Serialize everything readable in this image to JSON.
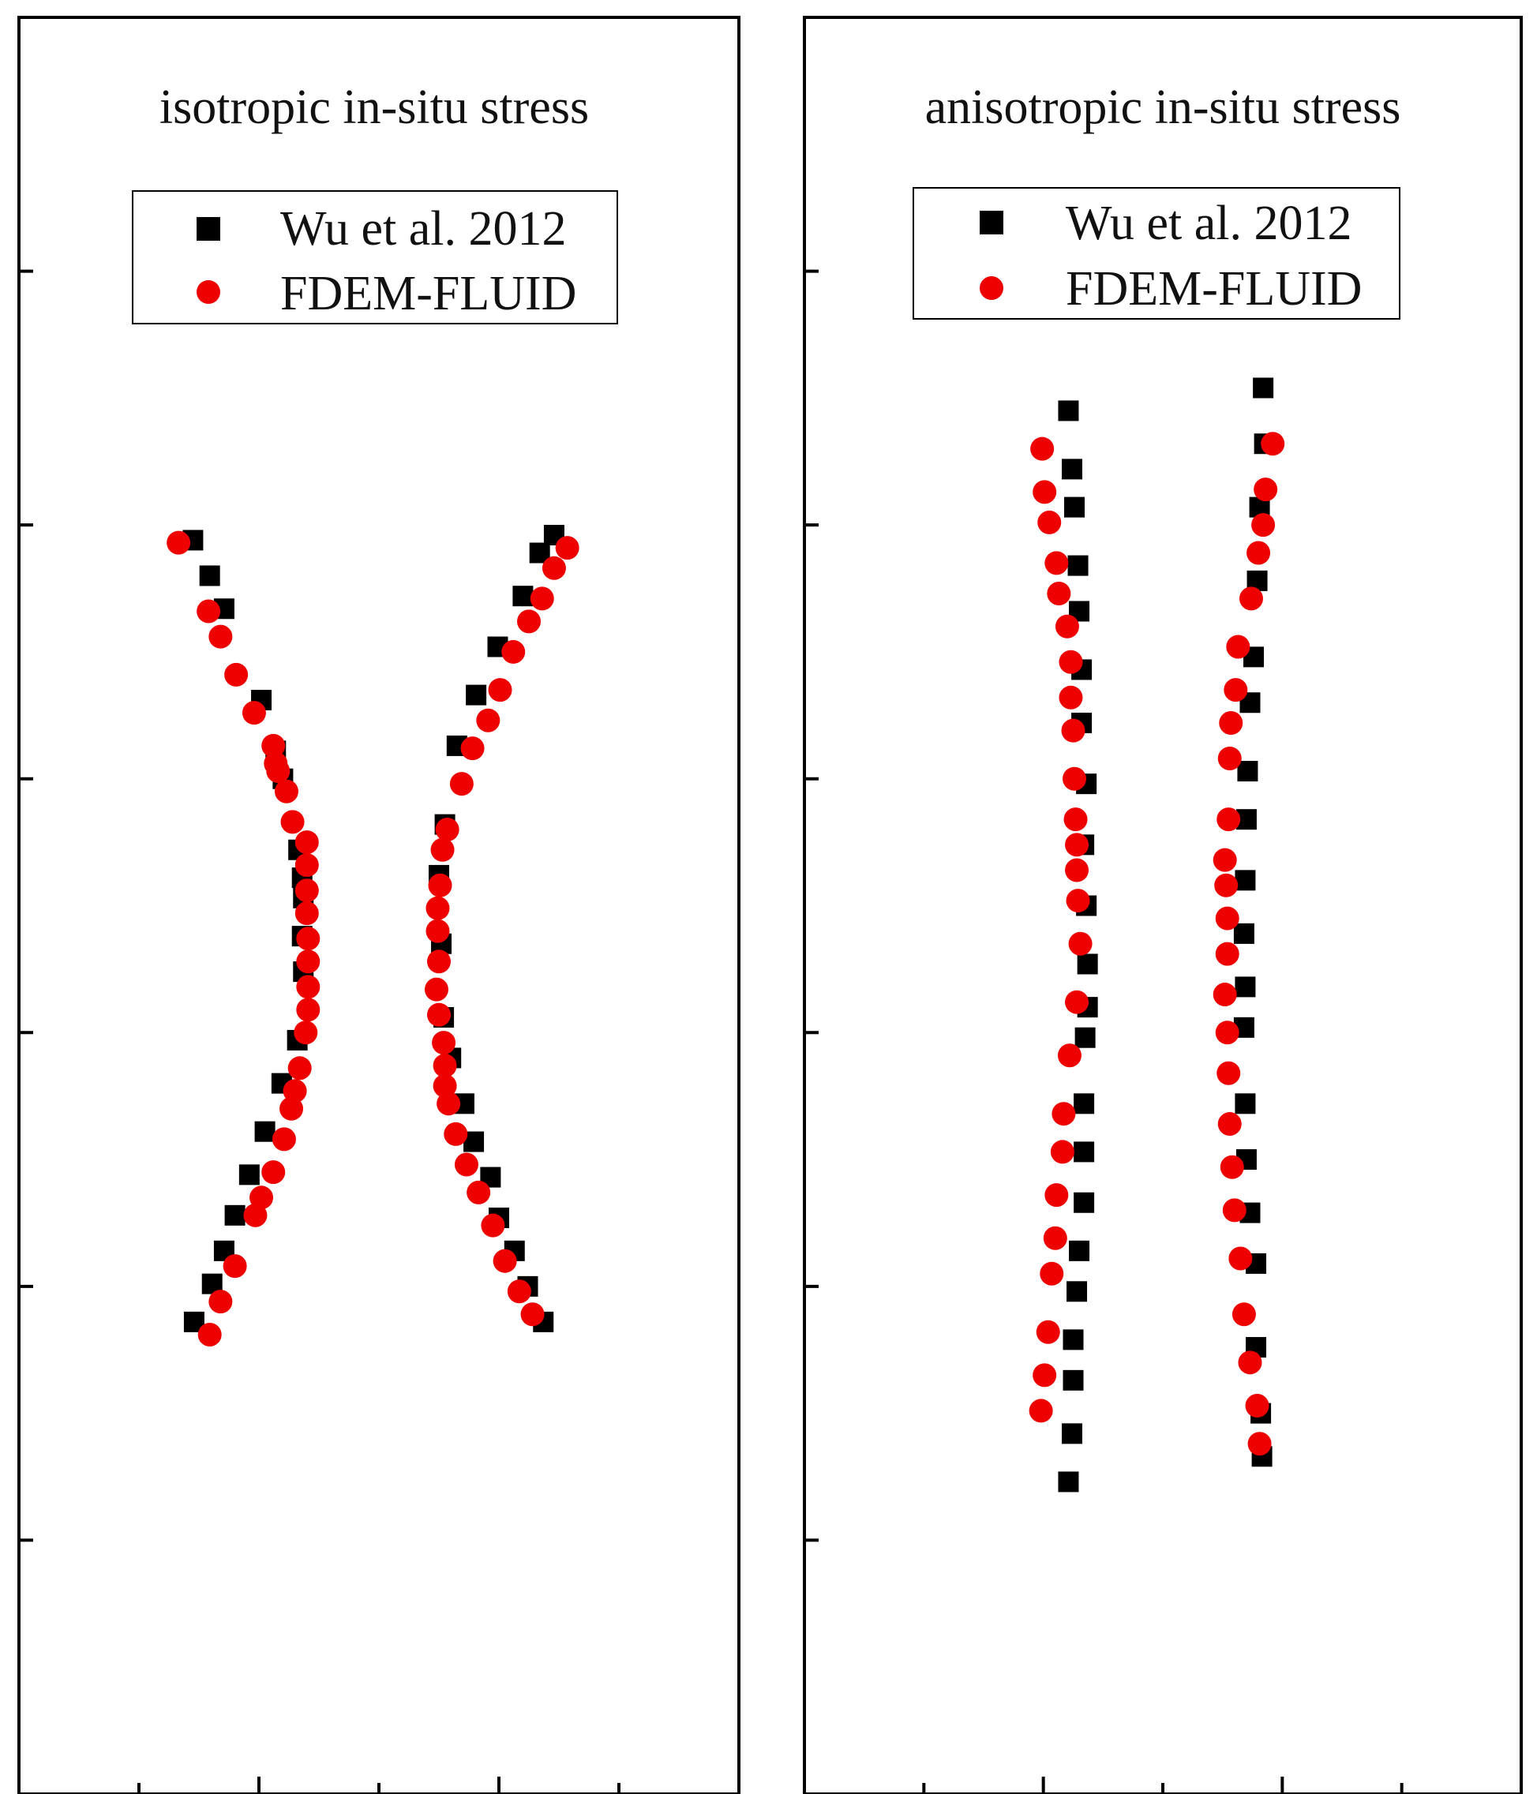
{
  "colors": {
    "series_wu": "#000000",
    "series_fdem": "#ee0000",
    "axis": "#000000"
  },
  "chart_data": [
    {
      "type": "scatter",
      "title": "isotropic in-situ stress",
      "xlabel": "",
      "ylabel": "",
      "xlim": [
        0,
        600
      ],
      "ylim": [
        0,
        700
      ],
      "x_ticks": [
        0,
        100,
        200,
        300,
        400,
        500,
        600
      ],
      "y_ticks": [
        0,
        100,
        200,
        300,
        400,
        500,
        600,
        700
      ],
      "grid": false,
      "legend_position": "top-center",
      "series": [
        {
          "name": "Wu et al. 2012",
          "marker": "square",
          "color": "#000000",
          "points": [
            [
              145,
              494
            ],
            [
              159,
              480
            ],
            [
              171,
              467
            ],
            [
              202,
              431
            ],
            [
              214,
              411
            ],
            [
              220,
              400
            ],
            [
              233,
              372
            ],
            [
              236,
              361
            ],
            [
              237,
              353
            ],
            [
              236,
              338
            ],
            [
              237,
              324
            ],
            [
              232,
              297
            ],
            [
              219,
              280
            ],
            [
              205,
              261
            ],
            [
              192,
              244
            ],
            [
              180,
              228
            ],
            [
              171,
              214
            ],
            [
              161,
              201
            ],
            [
              146,
              186
            ],
            [
              446,
              496
            ],
            [
              434,
              489
            ],
            [
              420,
              472
            ],
            [
              399,
              452
            ],
            [
              381,
              433
            ],
            [
              365,
              413
            ],
            [
              355,
              382
            ],
            [
              350,
              362
            ],
            [
              352,
              335
            ],
            [
              354,
              306
            ],
            [
              360,
              290
            ],
            [
              371,
              272
            ],
            [
              379,
              257
            ],
            [
              393,
              243
            ],
            [
              400,
              227
            ],
            [
              413,
              214
            ],
            [
              424,
              200
            ],
            [
              437,
              186
            ]
          ]
        },
        {
          "name": "FDEM-FLUID",
          "marker": "circle",
          "color": "#ee0000",
          "points": [
            [
              133,
              493
            ],
            [
              158,
              466
            ],
            [
              168,
              456
            ],
            [
              181,
              441
            ],
            [
              196,
              426
            ],
            [
              212,
              413
            ],
            [
              214,
              406
            ],
            [
              216,
              403
            ],
            [
              223,
              395
            ],
            [
              228,
              383
            ],
            [
              240,
              375
            ],
            [
              240,
              366
            ],
            [
              240,
              356
            ],
            [
              240,
              347
            ],
            [
              241,
              337
            ],
            [
              241,
              328
            ],
            [
              241,
              318
            ],
            [
              241,
              309
            ],
            [
              239,
              300
            ],
            [
              234,
              286
            ],
            [
              230,
              277
            ],
            [
              227,
              270
            ],
            [
              221,
              258
            ],
            [
              212,
              245
            ],
            [
              202,
              235
            ],
            [
              197,
              228
            ],
            [
              180,
              208
            ],
            [
              168,
              194
            ],
            [
              159,
              181
            ],
            [
              457,
              491
            ],
            [
              446,
              483
            ],
            [
              436,
              471
            ],
            [
              425,
              462
            ],
            [
              412,
              450
            ],
            [
              401,
              435
            ],
            [
              391,
              423
            ],
            [
              378,
              412
            ],
            [
              369,
              398
            ],
            [
              357,
              380
            ],
            [
              353,
              372
            ],
            [
              351,
              358
            ],
            [
              349,
              349
            ],
            [
              349,
              340
            ],
            [
              350,
              328
            ],
            [
              348,
              317
            ],
            [
              350,
              307
            ],
            [
              354,
              296
            ],
            [
              355,
              287
            ],
            [
              355,
              279
            ],
            [
              358,
              272
            ],
            [
              364,
              260
            ],
            [
              373,
              248
            ],
            [
              383,
              237
            ],
            [
              395,
              224
            ],
            [
              405,
              210
            ],
            [
              417,
              198
            ],
            [
              428,
              189
            ]
          ]
        }
      ]
    },
    {
      "type": "scatter",
      "title": "anisotropic in-situ stress",
      "xlabel": "",
      "ylabel": "",
      "xlim": [
        0,
        600
      ],
      "ylim": [
        0,
        700
      ],
      "x_ticks": [
        0,
        100,
        200,
        300,
        400,
        500,
        600
      ],
      "y_ticks": [
        0,
        100,
        200,
        300,
        400,
        500,
        600,
        700
      ],
      "grid": false,
      "legend_position": "top-center",
      "series": [
        {
          "name": "Wu et al. 2012",
          "marker": "square",
          "color": "#000000",
          "points": [
            [
              221,
              545
            ],
            [
              224,
              522
            ],
            [
              226,
              507
            ],
            [
              229,
              484
            ],
            [
              230,
              466
            ],
            [
              232,
              443
            ],
            [
              232,
              422
            ],
            [
              236,
              398
            ],
            [
              234,
              374
            ],
            [
              236,
              350
            ],
            [
              237,
              327
            ],
            [
              237,
              310
            ],
            [
              235,
              298
            ],
            [
              234,
              272
            ],
            [
              234,
              253
            ],
            [
              234,
              233
            ],
            [
              230,
              214
            ],
            [
              228,
              198
            ],
            [
              225,
              179
            ],
            [
              225,
              163
            ],
            [
              224,
              142
            ],
            [
              221,
              123
            ],
            [
              384,
              554
            ],
            [
              385,
              532
            ],
            [
              381,
              507
            ],
            [
              379,
              478
            ],
            [
              376,
              448
            ],
            [
              373,
              430
            ],
            [
              371,
              403
            ],
            [
              370,
              384
            ],
            [
              369,
              360
            ],
            [
              368,
              339
            ],
            [
              369,
              318
            ],
            [
              368,
              302
            ],
            [
              369,
              272
            ],
            [
              370,
              250
            ],
            [
              373,
              229
            ],
            [
              378,
              209
            ],
            [
              378,
              176
            ],
            [
              382,
              150
            ],
            [
              383,
              133
            ]
          ]
        },
        {
          "name": "FDEM-FLUID",
          "marker": "circle",
          "color": "#ee0000",
          "points": [
            [
              199,
              530
            ],
            [
              201,
              513
            ],
            [
              205,
              501
            ],
            [
              211,
              485
            ],
            [
              213,
              473
            ],
            [
              220,
              460
            ],
            [
              223,
              446
            ],
            [
              223,
              432
            ],
            [
              225,
              419
            ],
            [
              226,
              400
            ],
            [
              227,
              384
            ],
            [
              228,
              374
            ],
            [
              228,
              364
            ],
            [
              229,
              352
            ],
            [
              231,
              335
            ],
            [
              228,
              312
            ],
            [
              222,
              291
            ],
            [
              217,
              268
            ],
            [
              216,
              253
            ],
            [
              211,
              236
            ],
            [
              210,
              219
            ],
            [
              207,
              205
            ],
            [
              204,
              182
            ],
            [
              201,
              165
            ],
            [
              198,
              151
            ],
            [
              392,
              532
            ],
            [
              386,
              514
            ],
            [
              384,
              500
            ],
            [
              380,
              489
            ],
            [
              374,
              471
            ],
            [
              363,
              452
            ],
            [
              361,
              435
            ],
            [
              357,
              422
            ],
            [
              356,
              408
            ],
            [
              355,
              384
            ],
            [
              352,
              368
            ],
            [
              353,
              358
            ],
            [
              354,
              345
            ],
            [
              354,
              331
            ],
            [
              352,
              315
            ],
            [
              354,
              300
            ],
            [
              355,
              284
            ],
            [
              356,
              264
            ],
            [
              358,
              247
            ],
            [
              360,
              230
            ],
            [
              365,
              211
            ],
            [
              368,
              189
            ],
            [
              373,
              170
            ],
            [
              379,
              153
            ],
            [
              381,
              138
            ]
          ]
        }
      ]
    }
  ]
}
